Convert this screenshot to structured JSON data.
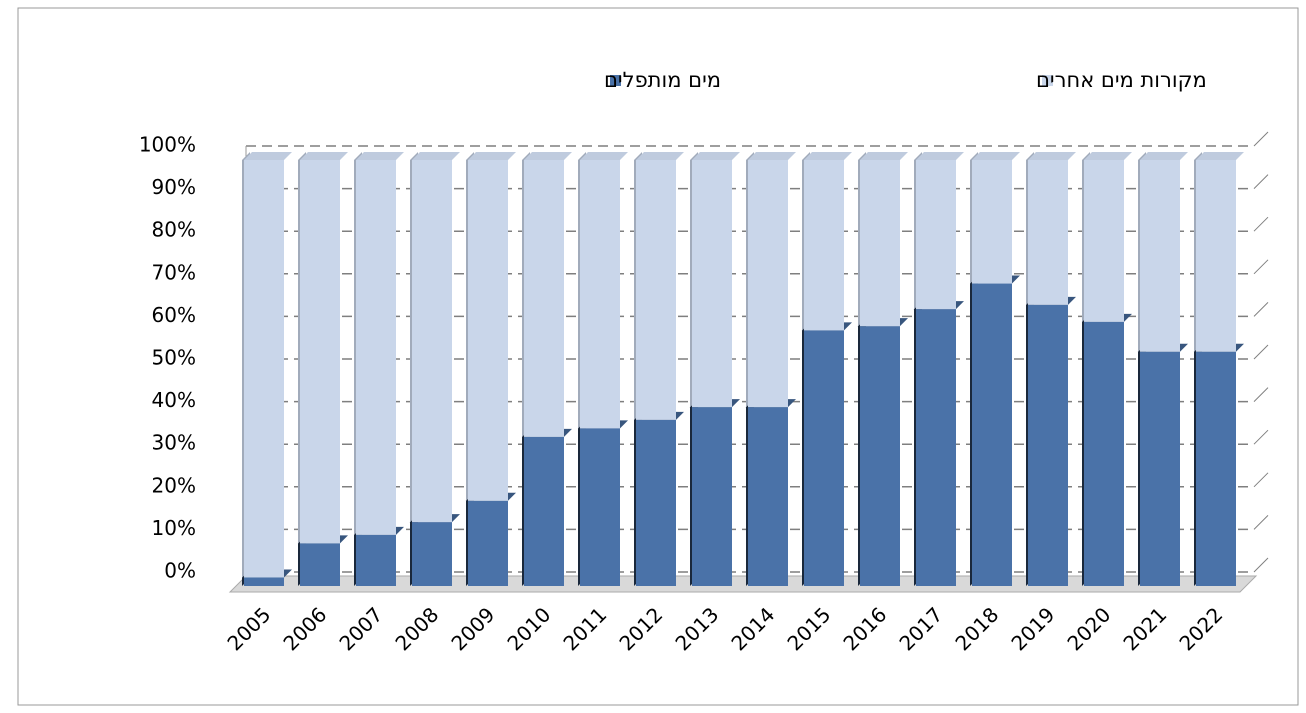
{
  "chart_data": {
    "type": "stacked-bar-3d",
    "categories": [
      "2005",
      "2006",
      "2007",
      "2008",
      "2009",
      "2010",
      "2011",
      "2012",
      "2013",
      "2014",
      "2015",
      "2016",
      "2017",
      "2018",
      "2019",
      "2020",
      "2021",
      "2022"
    ],
    "series": [
      {
        "name": "מים מותפלים",
        "color": "#4a72a8",
        "values": [
          2,
          10,
          12,
          15,
          20,
          35,
          37,
          39,
          42,
          42,
          60,
          61,
          65,
          71,
          66,
          62,
          55,
          55
        ]
      },
      {
        "name": "מקורות מים אחרים",
        "color": "#c9d6ea",
        "values": [
          98,
          90,
          88,
          85,
          80,
          65,
          63,
          61,
          58,
          58,
          40,
          39,
          35,
          29,
          34,
          38,
          45,
          45
        ]
      }
    ],
    "ylim": [
      0,
      100
    ],
    "yticks": [
      {
        "value": 0,
        "label": "0%"
      },
      {
        "value": 10,
        "label": "10%"
      },
      {
        "value": 20,
        "label": "20%"
      },
      {
        "value": 30,
        "label": "30%"
      },
      {
        "value": 40,
        "label": "40%"
      },
      {
        "value": 50,
        "label": "50%"
      },
      {
        "value": 60,
        "label": "60%"
      },
      {
        "value": 70,
        "label": "70%"
      },
      {
        "value": 80,
        "label": "80%"
      },
      {
        "value": 90,
        "label": "90%"
      },
      {
        "value": 100,
        "label": "100%"
      }
    ],
    "grid": true
  }
}
